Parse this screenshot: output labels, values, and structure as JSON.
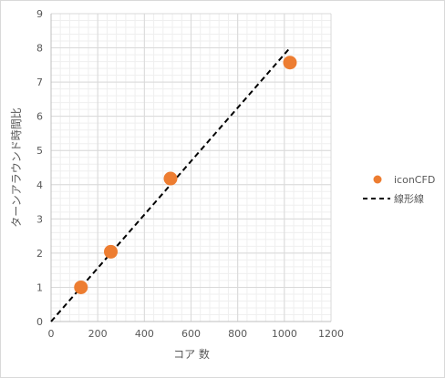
{
  "chart_data": {
    "type": "scatter",
    "xlabel": "コア 数",
    "ylabel": "ターンアラウンド時間比",
    "xlim": [
      0,
      1200
    ],
    "ylim": [
      0,
      9
    ],
    "x_ticks": [
      "0",
      "200",
      "400",
      "600",
      "800",
      "1000",
      "1200"
    ],
    "y_ticks": [
      "0",
      "1",
      "2",
      "3",
      "4",
      "5",
      "6",
      "7",
      "8",
      "9"
    ],
    "grid": true,
    "legend_position": "right",
    "series": [
      {
        "name": "iconCFD",
        "style": "markers",
        "color": "#ed7d31",
        "points": [
          {
            "x": 128,
            "y": 1.0
          },
          {
            "x": 256,
            "y": 2.04
          },
          {
            "x": 512,
            "y": 4.18
          },
          {
            "x": 1024,
            "y": 7.57
          }
        ]
      },
      {
        "name": "線形線",
        "style": "dashed-line",
        "color": "#000000",
        "points": [
          {
            "x": 0,
            "y": 0
          },
          {
            "x": 1024,
            "y": 8
          }
        ]
      }
    ]
  }
}
